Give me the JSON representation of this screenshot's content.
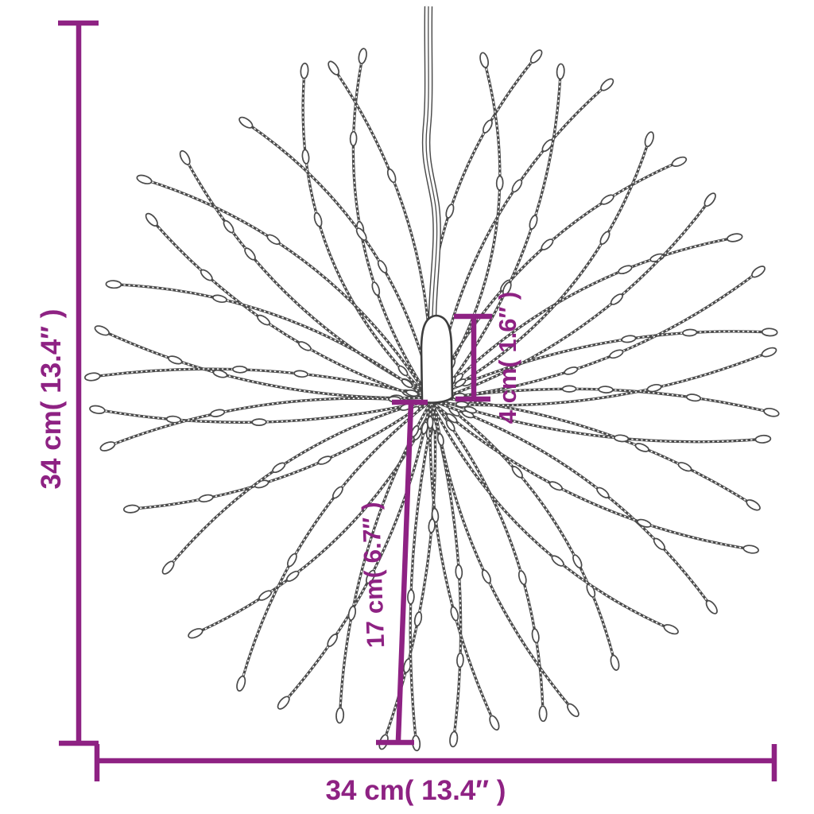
{
  "page": {
    "background": "#ffffff"
  },
  "diagram": {
    "accent_color": "#8e2283",
    "wire_color": "#4a4a4a",
    "dimensions": {
      "overall_height": {
        "label": "34 cm( 13.4″ )",
        "cm": 34,
        "inch": 13.4
      },
      "overall_width": {
        "label": "34 cm( 13.4″ )",
        "cm": 34,
        "inch": 13.4
      },
      "hub_height": {
        "label": "4 cm( 1.6″ )",
        "cm": 4,
        "inch": 1.6
      },
      "strand_drop": {
        "label": "17 cm( 6.7″ )",
        "cm": 17,
        "inch": 6.7
      }
    }
  }
}
